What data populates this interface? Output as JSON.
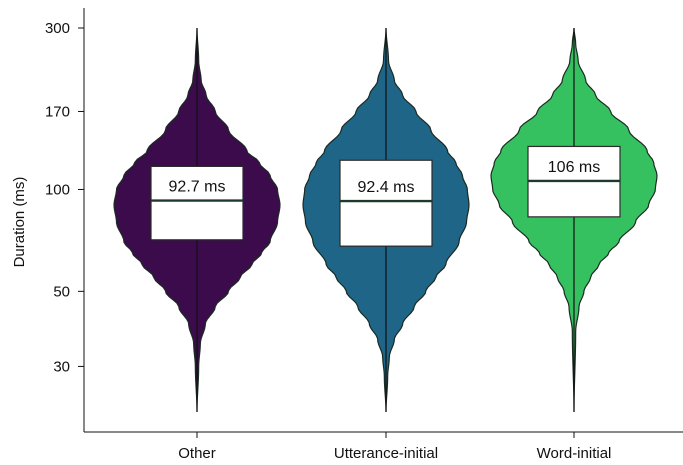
{
  "chart_data": {
    "type": "violin",
    "ylabel": "Duration (ms)",
    "y_scale": "log",
    "ylim": [
      22,
      300
    ],
    "y_ticks": [
      30,
      50,
      100,
      170,
      300
    ],
    "y_tick_labels": [
      "30",
      "50",
      "100",
      "170",
      "300"
    ],
    "grid": false,
    "categories": [
      "Other",
      "Utterance-initial",
      "Word-initial"
    ],
    "series": [
      {
        "category": "Other",
        "color": "#3b0b4c",
        "median": 92.7,
        "median_label": "92.7 ms",
        "q1": 71,
        "q3": 117,
        "min": 22,
        "max": 300,
        "mode": 92,
        "width_profile": [
          [
            22,
            0.0
          ],
          [
            30,
            0.02
          ],
          [
            35,
            0.04
          ],
          [
            40,
            0.1
          ],
          [
            45,
            0.22
          ],
          [
            50,
            0.38
          ],
          [
            55,
            0.52
          ],
          [
            60,
            0.66
          ],
          [
            65,
            0.78
          ],
          [
            70,
            0.88
          ],
          [
            80,
            0.97
          ],
          [
            90,
            1.0
          ],
          [
            100,
            0.97
          ],
          [
            110,
            0.88
          ],
          [
            120,
            0.75
          ],
          [
            130,
            0.6
          ],
          [
            150,
            0.38
          ],
          [
            170,
            0.22
          ],
          [
            190,
            0.11
          ],
          [
            210,
            0.05
          ],
          [
            240,
            0.02
          ],
          [
            300,
            0.0
          ]
        ]
      },
      {
        "category": "Utterance-initial",
        "color": "#1e6587",
        "median": 92.4,
        "median_label": "92.4 ms",
        "q1": 68,
        "q3": 122,
        "min": 22,
        "max": 300,
        "mode": 90,
        "width_profile": [
          [
            22,
            0.0
          ],
          [
            28,
            0.02
          ],
          [
            32,
            0.04
          ],
          [
            36,
            0.1
          ],
          [
            40,
            0.2
          ],
          [
            45,
            0.34
          ],
          [
            50,
            0.48
          ],
          [
            55,
            0.6
          ],
          [
            60,
            0.72
          ],
          [
            70,
            0.88
          ],
          [
            80,
            0.97
          ],
          [
            90,
            1.0
          ],
          [
            100,
            0.98
          ],
          [
            110,
            0.92
          ],
          [
            120,
            0.84
          ],
          [
            130,
            0.74
          ],
          [
            150,
            0.54
          ],
          [
            170,
            0.36
          ],
          [
            190,
            0.2
          ],
          [
            210,
            0.1
          ],
          [
            240,
            0.03
          ],
          [
            300,
            0.0
          ]
        ]
      },
      {
        "category": "Word-initial",
        "color": "#36c161",
        "median": 106,
        "median_label": "106 ms",
        "q1": 83,
        "q3": 134,
        "min": 22,
        "max": 300,
        "mode": 104,
        "width_profile": [
          [
            22,
            0.0
          ],
          [
            38,
            0.02
          ],
          [
            45,
            0.06
          ],
          [
            50,
            0.12
          ],
          [
            55,
            0.2
          ],
          [
            60,
            0.3
          ],
          [
            65,
            0.42
          ],
          [
            70,
            0.54
          ],
          [
            80,
            0.74
          ],
          [
            90,
            0.9
          ],
          [
            100,
            0.98
          ],
          [
            110,
            1.0
          ],
          [
            120,
            0.96
          ],
          [
            130,
            0.88
          ],
          [
            150,
            0.66
          ],
          [
            170,
            0.44
          ],
          [
            190,
            0.26
          ],
          [
            210,
            0.14
          ],
          [
            240,
            0.05
          ],
          [
            270,
            0.02
          ],
          [
            300,
            0.0
          ]
        ]
      }
    ]
  }
}
